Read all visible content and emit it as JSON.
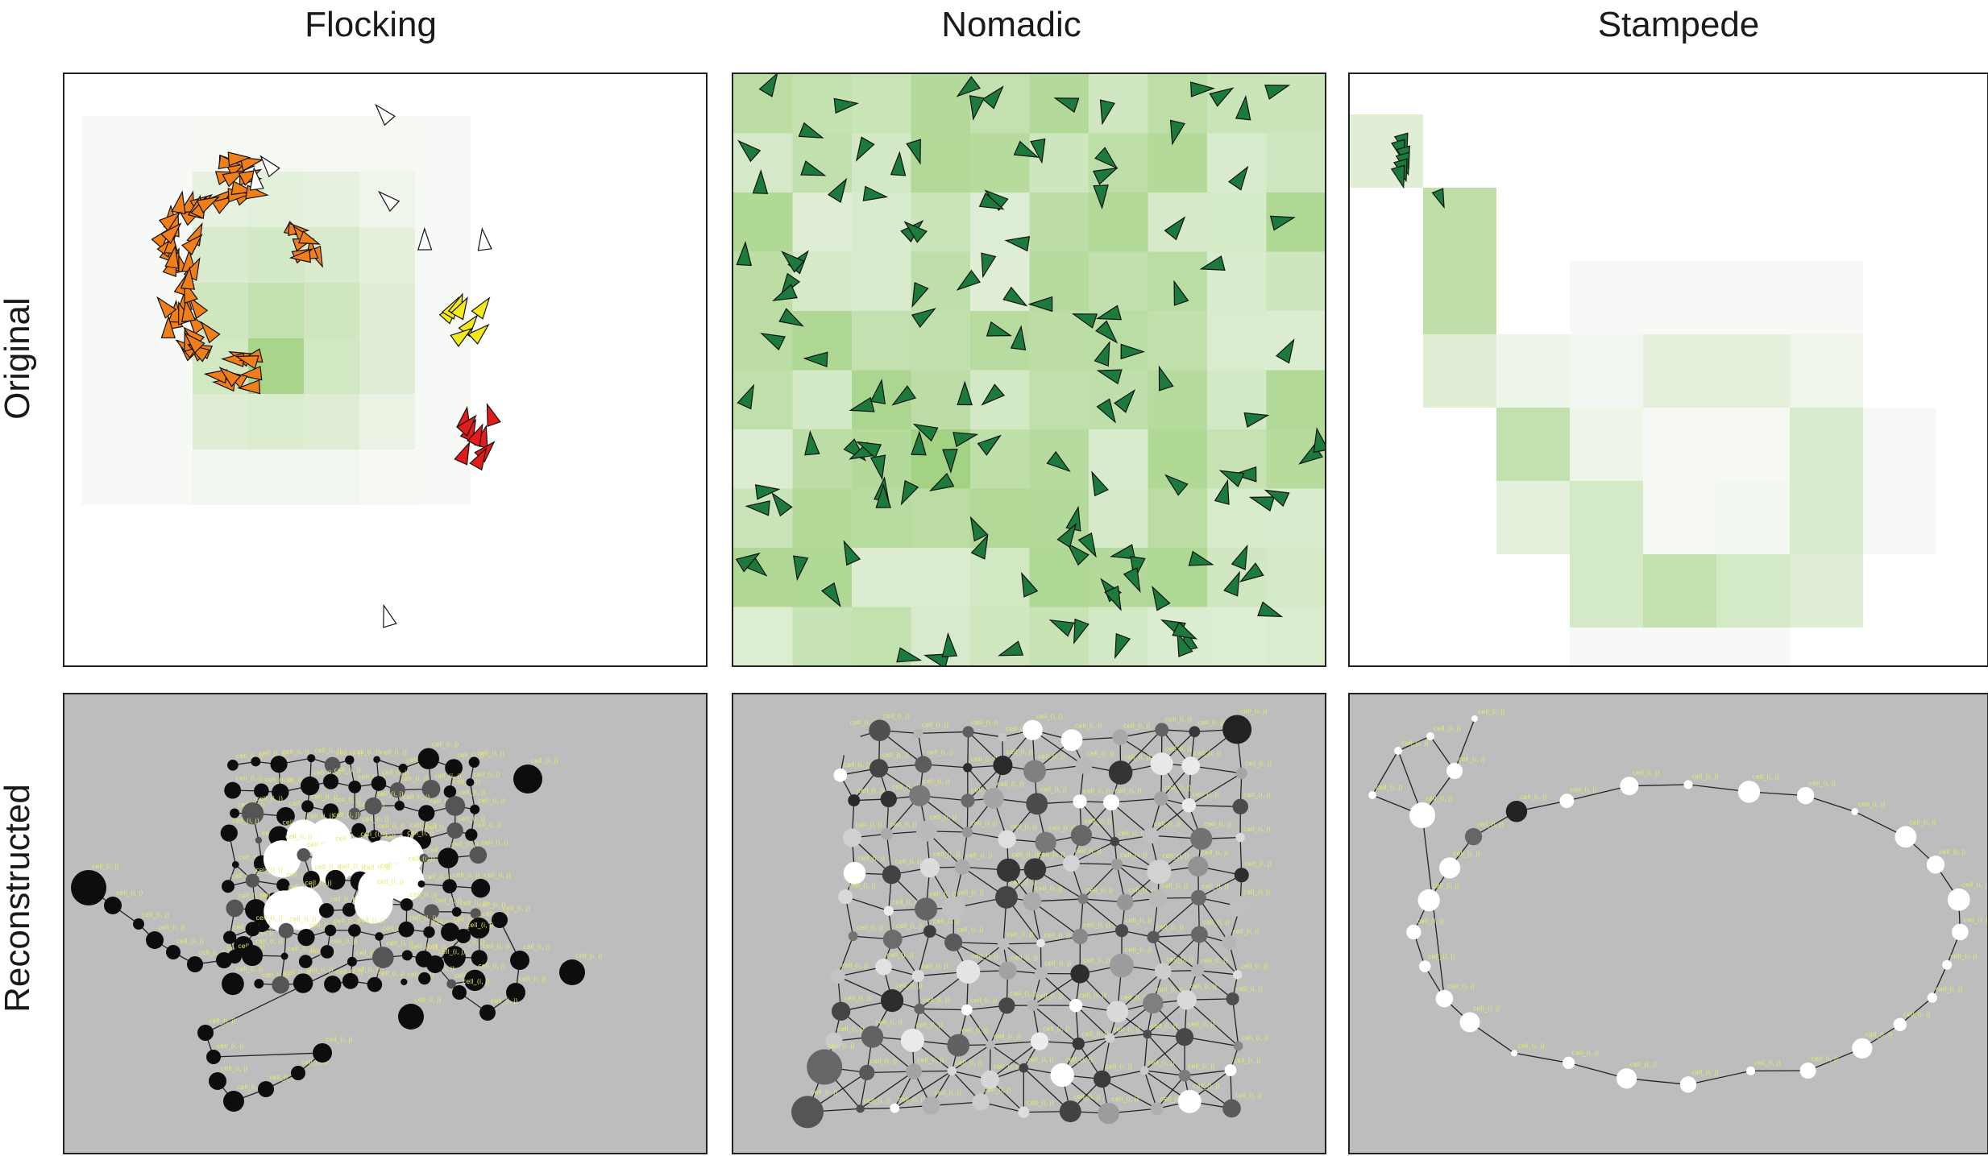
{
  "columns": [
    "Flocking",
    "Nomadic",
    "Stampede"
  ],
  "rows": [
    "Original",
    "Reconstructed"
  ],
  "colors": {
    "flock_orange": "#f07f1a",
    "flock_yellow": "#f2e81c",
    "flock_red": "#e41b1b",
    "nomad_green": "#1c7a3c",
    "grid_green": "#8bc86a",
    "recon_bg": "#bdbdbd",
    "node_label": "#e8e86a"
  },
  "node_label_text": "cell_(i, j)"
}
